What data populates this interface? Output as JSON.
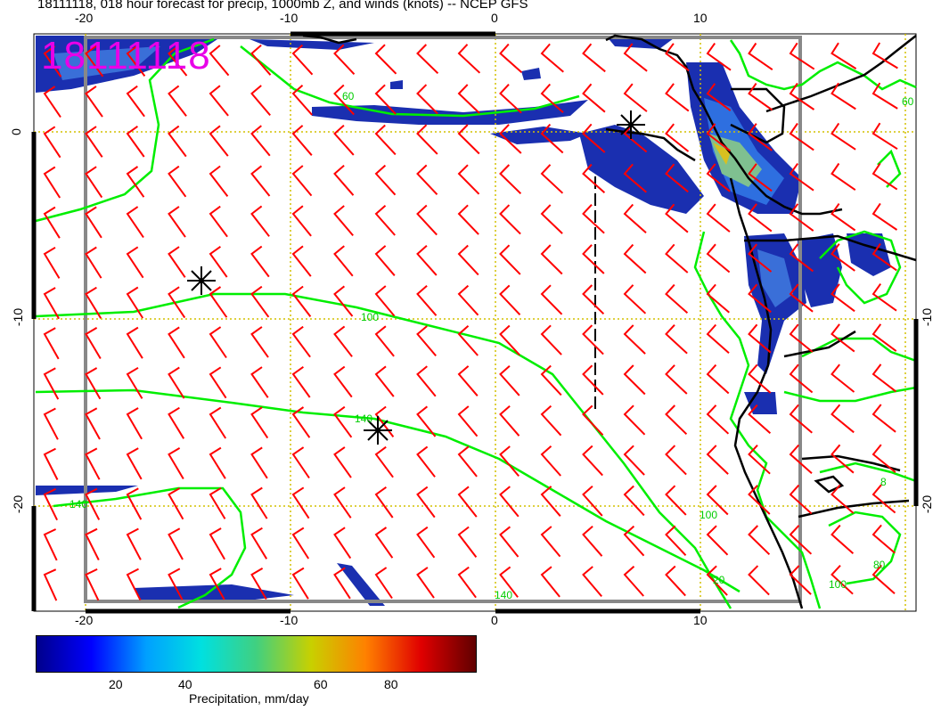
{
  "header": {
    "title": "18111118, 018 hour forecast for precip, 1000mb Z, and winds (knots) -- NCEP GFS",
    "stamp": "18111118"
  },
  "axes": {
    "top_lon_labels": [
      "-20",
      "-10",
      "0",
      "10"
    ],
    "bottom_lon_labels": [
      "-20",
      "-10",
      "0",
      "10"
    ],
    "left_lat_labels": [
      "0",
      "-10",
      "-20"
    ],
    "right_lat_labels": [
      "-10",
      "-20"
    ]
  },
  "contour_labels": [
    "60",
    "100",
    "140",
    "140",
    "140",
    "100",
    "20",
    "8",
    "80",
    "100",
    "60"
  ],
  "colorbar": {
    "ticks": [
      "20",
      "40",
      "60",
      "80"
    ],
    "label": "Precipitation, mm/day",
    "colors": [
      "#00008b",
      "#0000ff",
      "#00a0ff",
      "#00e0e0",
      "#40d080",
      "#c8d000",
      "#ff8000",
      "#e00000",
      "#600000"
    ]
  },
  "colors": {
    "contour": "#00ee00",
    "barb": "#ff0000",
    "coast": "#000000",
    "gridline": "#d4c000",
    "box": "#888888",
    "stamp": "#e800e8"
  },
  "markers": [
    "asterisk",
    "asterisk",
    "asterisk"
  ]
}
